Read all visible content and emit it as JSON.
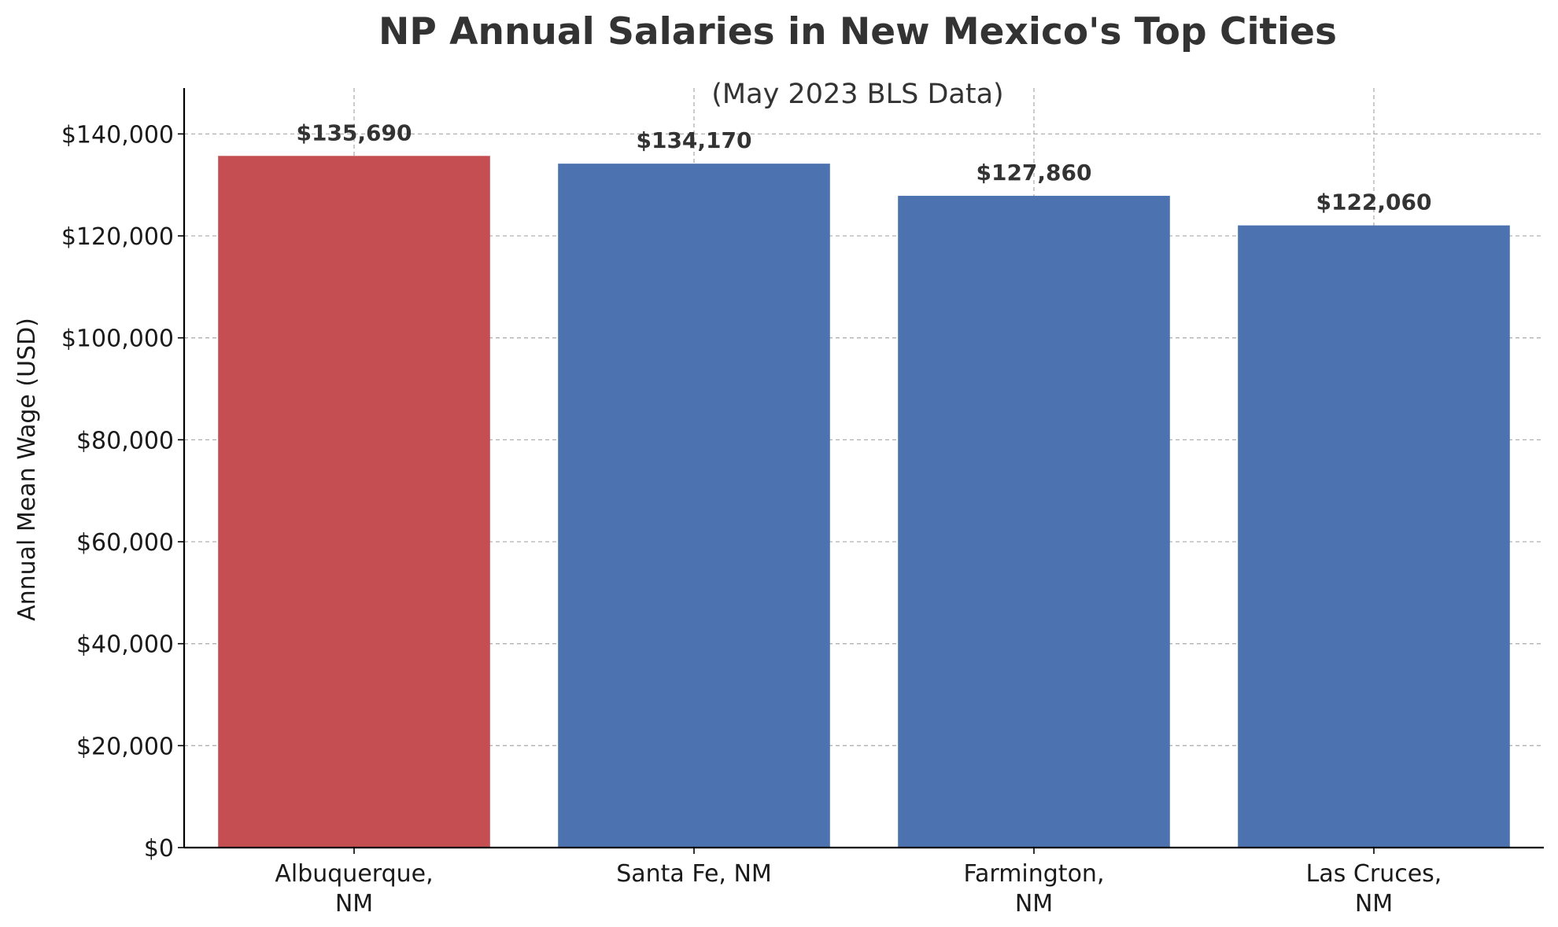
{
  "chart_data": {
    "type": "bar",
    "title": "NP Annual Salaries in New Mexico's Top Cities",
    "subtitle": "(May 2023 BLS Data)",
    "xlabel": "",
    "ylabel": "Annual Mean Wage (USD)",
    "categories": [
      [
        "Albuquerque,",
        "NM"
      ],
      [
        "Santa Fe, NM"
      ],
      [
        "Farmington,",
        "NM"
      ],
      [
        "Las Cruces,",
        "NM"
      ]
    ],
    "values": [
      135690,
      134170,
      127860,
      122060
    ],
    "value_labels": [
      "$135,690",
      "$134,170",
      "$127,860",
      "$122,060"
    ],
    "bar_colors": [
      "#c44e52",
      "#4c72b0",
      "#4c72b0",
      "#4c72b0"
    ],
    "ylim": [
      0,
      149000
    ],
    "yticks": [
      0,
      20000,
      40000,
      60000,
      80000,
      100000,
      120000,
      140000
    ],
    "ytick_labels": [
      "$0",
      "$20,000",
      "$40,000",
      "$60,000",
      "$80,000",
      "$100,000",
      "$120,000",
      "$140,000"
    ],
    "grid": true,
    "legend": "none"
  }
}
